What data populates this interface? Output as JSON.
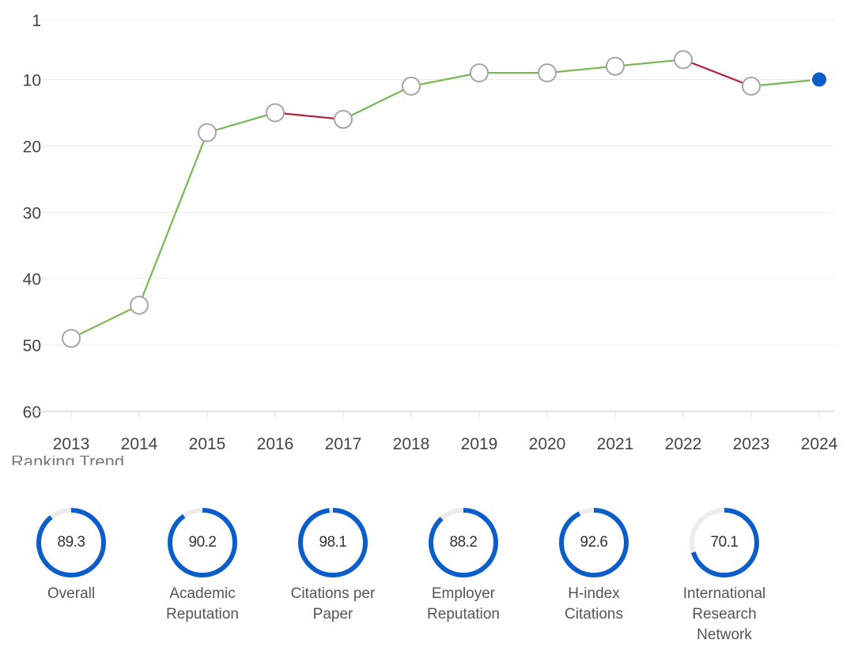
{
  "chart_data": {
    "type": "line",
    "title": "",
    "xlabel": "",
    "ylabel": "",
    "x": [
      "2013",
      "2014",
      "2015",
      "2016",
      "2017",
      "2018",
      "2019",
      "2020",
      "2021",
      "2022",
      "2023",
      "2024"
    ],
    "series": [
      {
        "values": [
          49,
          44,
          18,
          15,
          16,
          11,
          9,
          9,
          8,
          7,
          11,
          10
        ]
      }
    ],
    "ylim": [
      1,
      60
    ],
    "y_axis_inverted": true,
    "yticks": [
      "1",
      "10",
      "20",
      "30",
      "40",
      "50",
      "60"
    ],
    "grid": true,
    "colors": {
      "improving": "#76b852",
      "declining": "#b0203a",
      "marker_fill": "#ffffff",
      "marker_stroke": "#a6a6a6",
      "current_marker": "#0b5ec9",
      "gridline": "#ececec"
    }
  },
  "section_title_partial": "Ranking Trend",
  "scores": [
    {
      "value": "89.3",
      "pct": 89.3,
      "label_lines": [
        "Overall"
      ]
    },
    {
      "value": "90.2",
      "pct": 90.2,
      "label_lines": [
        "Academic",
        "Reputation"
      ]
    },
    {
      "value": "98.1",
      "pct": 98.1,
      "label_lines": [
        "Citations per",
        "Paper"
      ]
    },
    {
      "value": "88.2",
      "pct": 88.2,
      "label_lines": [
        "Employer",
        "Reputation"
      ]
    },
    {
      "value": "92.6",
      "pct": 92.6,
      "label_lines": [
        "H-index",
        "Citations"
      ]
    },
    {
      "value": "70.1",
      "pct": 70.1,
      "label_lines": [
        "International",
        "Research",
        "Network"
      ]
    }
  ],
  "score_colors": {
    "ring": "#0b5ec9",
    "track": "#ececec"
  }
}
